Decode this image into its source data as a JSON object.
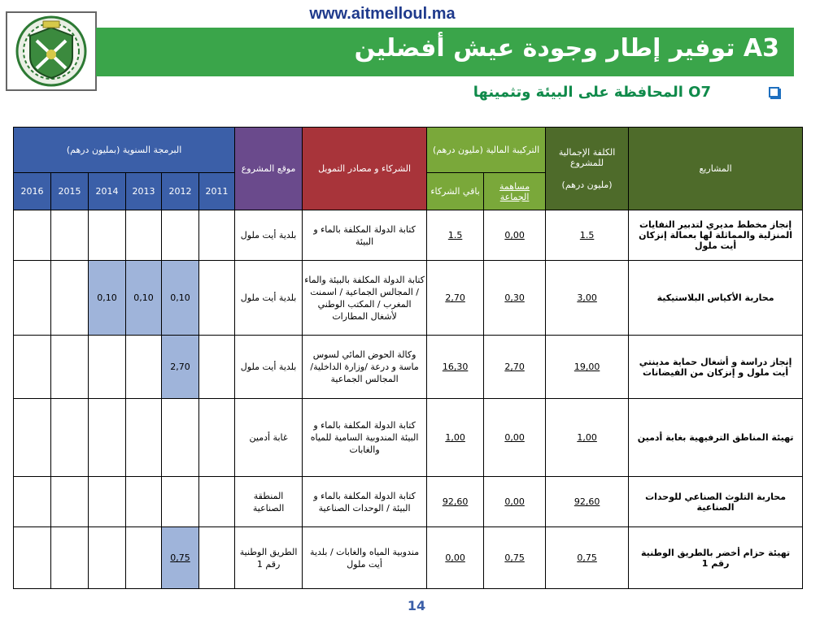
{
  "header": {
    "url": "www.aitmelloul.ma",
    "title": "A3 توفير إطار وجودة عيش أفضلين",
    "subtitle": "O7 المحافظة على البيئة وتثمينها"
  },
  "table": {
    "headers": {
      "annual": "البرمجة السنوية (بمليون درهم)",
      "location": "موقع المشروع",
      "partners": "الشركاء و مصادر التمويل",
      "financing": "التركيبة المالية (مليون درهم)",
      "cost_line1": "الكلفة الإجمالية للمشروع",
      "cost_line2": "(مليون درهم)",
      "projects": "المشاريع",
      "commune": "مساهمة الجماعة",
      "others": "باقي الشركاء",
      "years": [
        "2016",
        "2015",
        "2014",
        "2013",
        "2012",
        "2011"
      ]
    },
    "rows": [
      {
        "project": "إنجاز مخطط مديري لتدبير النفايات المنزلية والمماثلة لها بعمالة إنزكان أيت ملول",
        "cost": "1.5",
        "commune": "0,00",
        "others": "1.5",
        "partners": "كتابة الدولة المكلفة بالماء و البيئة",
        "location": "بلدية أيت ملول",
        "y2016": "",
        "y2015": "",
        "y2014": "",
        "y2013": "",
        "y2012": "",
        "y2011": ""
      },
      {
        "project": "محاربة الأكياس البلاستيكية",
        "cost": "3,00",
        "commune": "0,30",
        "others": "2,70",
        "partners": "كتابة الدولة المكلفة بالبيئة والماء / المجالس الجماعية / اسمنت المغرب / المكتب الوطني لأشغال المطارات",
        "location": "بلدية أيت ملول",
        "y2016": "",
        "y2015": "",
        "y2014": "0,10",
        "y2013": "0,10",
        "y2012": "0,10",
        "y2011": ""
      },
      {
        "project": "إنجاز دراسة و أشغال حماية مدينتي أيت ملول و إنزكان من الفيضانات",
        "cost": "19,00",
        "commune": "2,70",
        "others": "16,30",
        "partners": "وكالة الحوض المائي لسوس ماسة و درعة /وزارة الداخلية/ المجالس الجماعية",
        "location": "بلدية أيت ملول",
        "y2016": "",
        "y2015": "",
        "y2014": "",
        "y2013": "",
        "y2012": "2,70",
        "y2011": ""
      },
      {
        "project": "تهيئة المناطق الترفيهية بغابة أدمين",
        "cost": "1,00",
        "commune": "0,00",
        "others": "1,00",
        "partners": "كتابة الدولة المكلفة بالماء و البيئة المندوبية السامية للمياه والغابات",
        "location": "غابة أدمين",
        "y2016": "",
        "y2015": "",
        "y2014": "",
        "y2013": "",
        "y2012": "",
        "y2011": ""
      },
      {
        "project": "محاربة التلوث الصناعي للوحدات الصناعية",
        "cost": "92,60",
        "commune": "0,00",
        "others": "92,60",
        "partners": "كتابة الدولة المكلفة بالماء و البيئة / الوحدات الصناعية",
        "location": "المنطقة الصناعية",
        "y2016": "",
        "y2015": "",
        "y2014": "",
        "y2013": "",
        "y2012": "",
        "y2011": ""
      },
      {
        "project": "تهيئة حزام أخضر بالطريق الوطنية رقم 1",
        "cost": "0,75",
        "commune": "0,75",
        "others": "0,00",
        "partners": "مندوبية المياه والغابات / بلدية أيت ملول",
        "location": "الطريق الوطنية رقم 1",
        "y2016": "",
        "y2015": "",
        "y2014": "",
        "y2013": "",
        "y2012": "0,75",
        "y2011": ""
      }
    ]
  },
  "footer": {
    "page_number": "14"
  }
}
